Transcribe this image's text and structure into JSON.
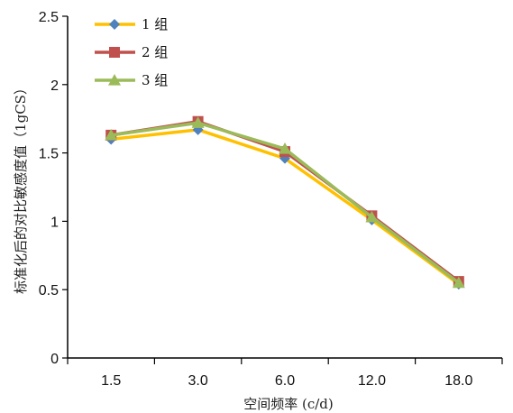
{
  "chart_data": {
    "type": "line",
    "categories": [
      "1.5",
      "3.0",
      "6.0",
      "12.0",
      "18.0"
    ],
    "series": [
      {
        "name": "1 组",
        "values": [
          1.6,
          1.67,
          1.46,
          1.01,
          0.54
        ],
        "color": "#FFC000",
        "marker": "diamond",
        "marker_color": "#4F81BD"
      },
      {
        "name": "2 组",
        "values": [
          1.63,
          1.73,
          1.51,
          1.04,
          0.56
        ],
        "color": "#C0504D",
        "marker": "square",
        "marker_color": "#C0504D"
      },
      {
        "name": "3 组",
        "values": [
          1.63,
          1.72,
          1.53,
          1.03,
          0.55
        ],
        "color": "#9BBB59",
        "marker": "triangle",
        "marker_color": "#9BBB59"
      }
    ],
    "xlabel": "空间频率 (c/d)",
    "ylabel": "标准化后的对比敏感度值（1gCS）",
    "ylim": [
      0,
      2.5
    ],
    "yticks": [
      "0",
      "0.5",
      "1",
      "1.5",
      "2",
      "2.5"
    ],
    "grid": false,
    "legend_position": "top-left"
  }
}
